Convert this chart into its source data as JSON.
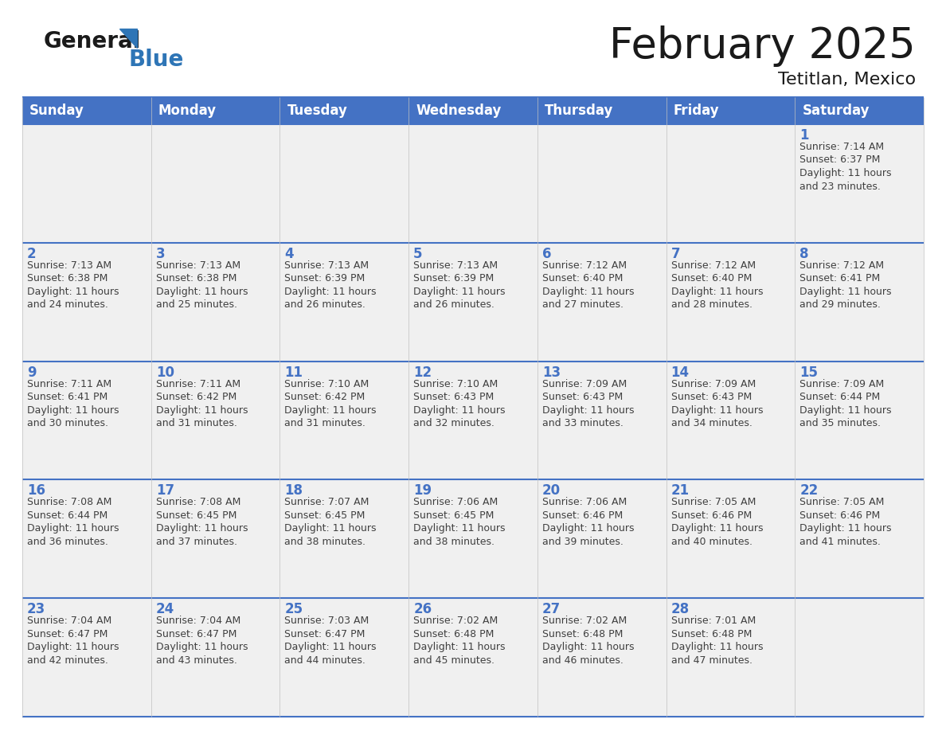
{
  "title": "February 2025",
  "subtitle": "Tetitlan, Mexico",
  "days_of_week": [
    "Sunday",
    "Monday",
    "Tuesday",
    "Wednesday",
    "Thursday",
    "Friday",
    "Saturday"
  ],
  "header_bg_color": "#4472C4",
  "header_text_color": "#FFFFFF",
  "row_bg": "#F0F0F0",
  "cell_border_color": "#4472C4",
  "day_number_color": "#4472C4",
  "info_text_color": "#404040",
  "title_color": "#1a1a1a",
  "logo_general_color": "#1a1a1a",
  "logo_blue_color": "#2E75B6",
  "calendar_data": [
    [
      null,
      null,
      null,
      null,
      null,
      null,
      {
        "day": 1,
        "sunrise": "7:14 AM",
        "sunset": "6:37 PM",
        "daylight": "11 hours and 23 minutes."
      }
    ],
    [
      {
        "day": 2,
        "sunrise": "7:13 AM",
        "sunset": "6:38 PM",
        "daylight": "11 hours and 24 minutes."
      },
      {
        "day": 3,
        "sunrise": "7:13 AM",
        "sunset": "6:38 PM",
        "daylight": "11 hours and 25 minutes."
      },
      {
        "day": 4,
        "sunrise": "7:13 AM",
        "sunset": "6:39 PM",
        "daylight": "11 hours and 26 minutes."
      },
      {
        "day": 5,
        "sunrise": "7:13 AM",
        "sunset": "6:39 PM",
        "daylight": "11 hours and 26 minutes."
      },
      {
        "day": 6,
        "sunrise": "7:12 AM",
        "sunset": "6:40 PM",
        "daylight": "11 hours and 27 minutes."
      },
      {
        "day": 7,
        "sunrise": "7:12 AM",
        "sunset": "6:40 PM",
        "daylight": "11 hours and 28 minutes."
      },
      {
        "day": 8,
        "sunrise": "7:12 AM",
        "sunset": "6:41 PM",
        "daylight": "11 hours and 29 minutes."
      }
    ],
    [
      {
        "day": 9,
        "sunrise": "7:11 AM",
        "sunset": "6:41 PM",
        "daylight": "11 hours and 30 minutes."
      },
      {
        "day": 10,
        "sunrise": "7:11 AM",
        "sunset": "6:42 PM",
        "daylight": "11 hours and 31 minutes."
      },
      {
        "day": 11,
        "sunrise": "7:10 AM",
        "sunset": "6:42 PM",
        "daylight": "11 hours and 31 minutes."
      },
      {
        "day": 12,
        "sunrise": "7:10 AM",
        "sunset": "6:43 PM",
        "daylight": "11 hours and 32 minutes."
      },
      {
        "day": 13,
        "sunrise": "7:09 AM",
        "sunset": "6:43 PM",
        "daylight": "11 hours and 33 minutes."
      },
      {
        "day": 14,
        "sunrise": "7:09 AM",
        "sunset": "6:43 PM",
        "daylight": "11 hours and 34 minutes."
      },
      {
        "day": 15,
        "sunrise": "7:09 AM",
        "sunset": "6:44 PM",
        "daylight": "11 hours and 35 minutes."
      }
    ],
    [
      {
        "day": 16,
        "sunrise": "7:08 AM",
        "sunset": "6:44 PM",
        "daylight": "11 hours and 36 minutes."
      },
      {
        "day": 17,
        "sunrise": "7:08 AM",
        "sunset": "6:45 PM",
        "daylight": "11 hours and 37 minutes."
      },
      {
        "day": 18,
        "sunrise": "7:07 AM",
        "sunset": "6:45 PM",
        "daylight": "11 hours and 38 minutes."
      },
      {
        "day": 19,
        "sunrise": "7:06 AM",
        "sunset": "6:45 PM",
        "daylight": "11 hours and 38 minutes."
      },
      {
        "day": 20,
        "sunrise": "7:06 AM",
        "sunset": "6:46 PM",
        "daylight": "11 hours and 39 minutes."
      },
      {
        "day": 21,
        "sunrise": "7:05 AM",
        "sunset": "6:46 PM",
        "daylight": "11 hours and 40 minutes."
      },
      {
        "day": 22,
        "sunrise": "7:05 AM",
        "sunset": "6:46 PM",
        "daylight": "11 hours and 41 minutes."
      }
    ],
    [
      {
        "day": 23,
        "sunrise": "7:04 AM",
        "sunset": "6:47 PM",
        "daylight": "11 hours and 42 minutes."
      },
      {
        "day": 24,
        "sunrise": "7:04 AM",
        "sunset": "6:47 PM",
        "daylight": "11 hours and 43 minutes."
      },
      {
        "day": 25,
        "sunrise": "7:03 AM",
        "sunset": "6:47 PM",
        "daylight": "11 hours and 44 minutes."
      },
      {
        "day": 26,
        "sunrise": "7:02 AM",
        "sunset": "6:48 PM",
        "daylight": "11 hours and 45 minutes."
      },
      {
        "day": 27,
        "sunrise": "7:02 AM",
        "sunset": "6:48 PM",
        "daylight": "11 hours and 46 minutes."
      },
      {
        "day": 28,
        "sunrise": "7:01 AM",
        "sunset": "6:48 PM",
        "daylight": "11 hours and 47 minutes."
      },
      null
    ]
  ]
}
